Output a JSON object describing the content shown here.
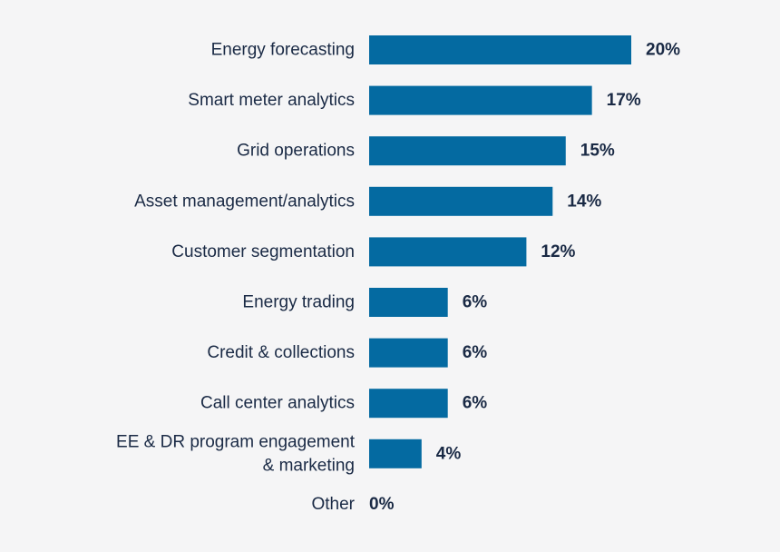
{
  "chart_data": {
    "type": "bar",
    "orientation": "horizontal",
    "title": "",
    "xlabel": "",
    "ylabel": "",
    "grid": false,
    "legend": "none",
    "bar_color": "#046aa1",
    "text_color": "#1a2a45",
    "value_suffix": "%",
    "xlim": [
      0,
      20
    ],
    "categories": [
      [
        "Energy forecasting"
      ],
      [
        "Smart meter analytics"
      ],
      [
        "Grid operations"
      ],
      [
        "Asset management/analytics"
      ],
      [
        "Customer segmentation"
      ],
      [
        "Energy trading"
      ],
      [
        "Credit & collections"
      ],
      [
        "Call center analytics"
      ],
      [
        "EE & DR program engagement",
        "& marketing"
      ],
      [
        "Other"
      ]
    ],
    "values": [
      20,
      17,
      15,
      14,
      12,
      6,
      6,
      6,
      4,
      0
    ],
    "value_labels": [
      "20%",
      "17%",
      "15%",
      "14%",
      "12%",
      "6%",
      "6%",
      "6%",
      "4%",
      "0%"
    ]
  }
}
